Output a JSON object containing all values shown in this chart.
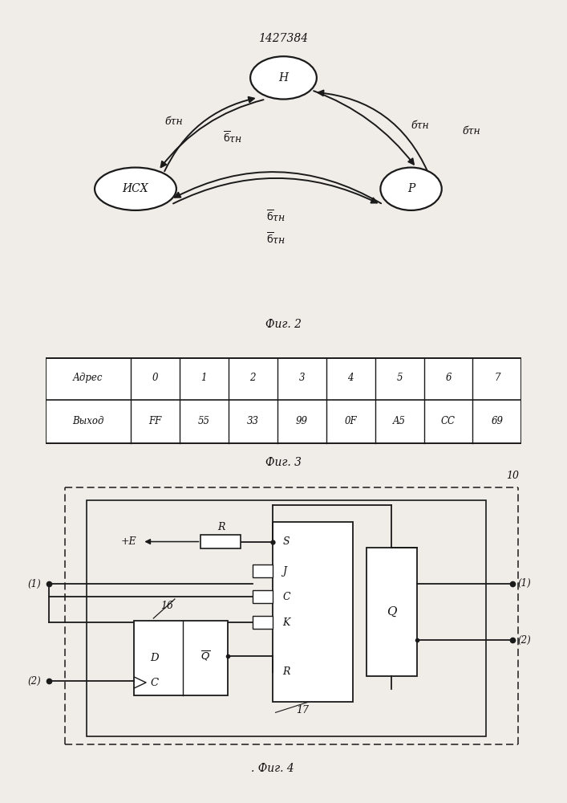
{
  "patent_number": "1427384",
  "fig2_caption": "Фиг. 2",
  "fig3_caption": "Фиг. 3",
  "fig4_caption": ". Фиг. 4",
  "table_row1": [
    "Адрес",
    "0",
    "1",
    "2",
    "3",
    "4",
    "5",
    "6",
    "7"
  ],
  "table_row2": [
    "Выход",
    "FF",
    "55",
    "33",
    "99",
    "0F",
    "A5",
    "CC",
    "69"
  ],
  "bg_color": "#f0ede8",
  "line_color": "#1a1a1a",
  "text_color": "#111111"
}
